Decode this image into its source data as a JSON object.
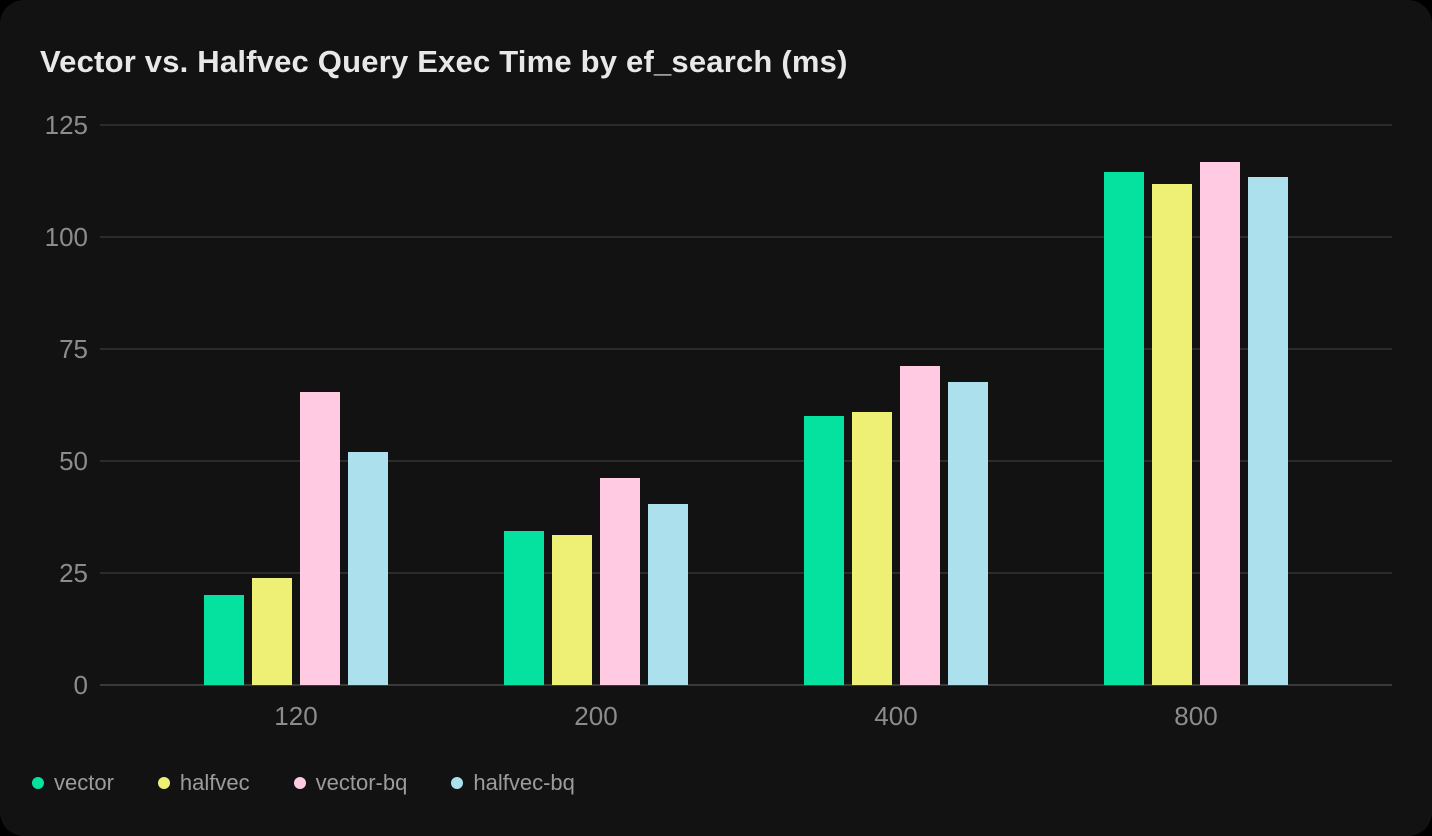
{
  "colors": {
    "page_background": "#000000",
    "card": "#121212",
    "grid": "#2b2b2b",
    "axis_line": "#3a3a3a",
    "axis_text": "#8c8c8c",
    "title_text": "#e8e8e8",
    "legend_text": "#9c9c9c"
  },
  "chart_data": {
    "type": "bar",
    "title": "Vector vs. Halfvec Query Exec Time by ef_search (ms)",
    "categories": [
      "120",
      "200",
      "400",
      "800"
    ],
    "series": [
      {
        "name": "vector",
        "color": "#05e2a0",
        "values": [
          20.0,
          34.3,
          60.1,
          114.5
        ]
      },
      {
        "name": "halfvec",
        "color": "#eef076",
        "values": [
          23.8,
          33.4,
          61.0,
          111.9
        ]
      },
      {
        "name": "vector-bq",
        "color": "#ffcae2",
        "values": [
          65.5,
          46.3,
          71.3,
          116.8
        ]
      },
      {
        "name": "halfvec-bq",
        "color": "#abe0ec",
        "values": [
          52.0,
          40.4,
          67.7,
          113.3
        ]
      }
    ],
    "xlabel": "",
    "ylabel": "",
    "ylim": [
      0,
      125
    ],
    "yticks": [
      0,
      25,
      50,
      75,
      100,
      125
    ],
    "grid": "horizontal",
    "legend_position": "bottom-left"
  }
}
